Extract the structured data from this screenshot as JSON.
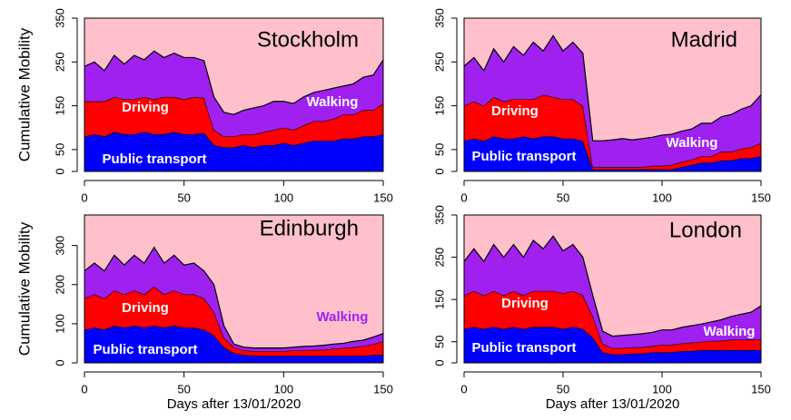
{
  "chart_data": [
    {
      "type": "area",
      "title": "Stockholm",
      "ylabel": "Cumulative Mobility",
      "x": [
        0,
        5,
        10,
        15,
        20,
        25,
        30,
        35,
        40,
        45,
        50,
        55,
        60,
        65,
        70,
        75,
        80,
        85,
        90,
        95,
        100,
        105,
        110,
        115,
        120,
        125,
        130,
        135,
        140,
        145,
        150
      ],
      "xlim": [
        0,
        150
      ],
      "ylim": [
        0,
        350
      ],
      "xticks": [
        0,
        50,
        100,
        150
      ],
      "yticks": [
        0,
        50,
        150,
        250,
        350
      ],
      "series": [
        {
          "name": "Public transport",
          "color": "#0000ff",
          "values": [
            80,
            85,
            80,
            90,
            85,
            85,
            90,
            85,
            85,
            90,
            85,
            85,
            88,
            60,
            55,
            55,
            60,
            55,
            60,
            60,
            65,
            60,
            65,
            70,
            70,
            70,
            75,
            75,
            80,
            80,
            85
          ]
        },
        {
          "name": "Driving",
          "color": "#ff0000",
          "values": [
            80,
            75,
            80,
            80,
            80,
            80,
            80,
            80,
            85,
            80,
            80,
            85,
            80,
            35,
            25,
            25,
            25,
            30,
            30,
            35,
            35,
            35,
            40,
            45,
            45,
            50,
            55,
            55,
            60,
            60,
            70
          ]
        },
        {
          "name": "Walking",
          "color": "#a020f0",
          "values": [
            80,
            90,
            70,
            95,
            80,
            100,
            85,
            110,
            90,
            100,
            95,
            90,
            85,
            75,
            55,
            50,
            55,
            60,
            60,
            65,
            60,
            60,
            65,
            65,
            70,
            70,
            65,
            70,
            75,
            80,
            100
          ]
        }
      ]
    },
    {
      "type": "area",
      "title": "Madrid",
      "x": [
        0,
        5,
        10,
        15,
        20,
        25,
        30,
        35,
        40,
        45,
        50,
        55,
        60,
        65,
        70,
        75,
        80,
        85,
        90,
        95,
        100,
        105,
        110,
        115,
        120,
        125,
        130,
        135,
        140,
        145,
        150
      ],
      "xlim": [
        0,
        150
      ],
      "ylim": [
        0,
        350
      ],
      "xticks": [
        0,
        50,
        100,
        150
      ],
      "yticks": [
        0,
        50,
        150,
        250,
        350
      ],
      "series": [
        {
          "name": "Public transport",
          "color": "#0000ff",
          "values": [
            70,
            75,
            70,
            80,
            75,
            75,
            80,
            75,
            80,
            80,
            75,
            75,
            70,
            5,
            5,
            5,
            5,
            5,
            5,
            5,
            5,
            5,
            10,
            15,
            20,
            20,
            25,
            25,
            30,
            30,
            35
          ]
        },
        {
          "name": "Driving",
          "color": "#ff0000",
          "values": [
            80,
            85,
            80,
            90,
            85,
            90,
            85,
            90,
            95,
            90,
            90,
            90,
            80,
            5,
            5,
            5,
            5,
            5,
            5,
            8,
            8,
            10,
            12,
            12,
            15,
            15,
            20,
            20,
            22,
            25,
            30
          ]
        },
        {
          "name": "Walking",
          "color": "#a020f0",
          "values": [
            90,
            100,
            80,
            110,
            90,
            120,
            100,
            130,
            100,
            140,
            110,
            130,
            120,
            60,
            60,
            62,
            65,
            62,
            65,
            65,
            70,
            70,
            70,
            70,
            75,
            75,
            80,
            85,
            90,
            95,
            110
          ]
        }
      ]
    },
    {
      "type": "area",
      "title": "Edinburgh",
      "ylabel": "Cumulative Mobility",
      "xlabel": "Days after 13/01/2020",
      "x": [
        0,
        5,
        10,
        15,
        20,
        25,
        30,
        35,
        40,
        45,
        50,
        55,
        60,
        65,
        70,
        75,
        80,
        85,
        90,
        95,
        100,
        105,
        110,
        115,
        120,
        125,
        130,
        135,
        140,
        145,
        150
      ],
      "xlim": [
        0,
        150
      ],
      "ylim": [
        0,
        378
      ],
      "xticks": [
        0,
        50,
        100,
        150
      ],
      "yticks": [
        0,
        100,
        200,
        300
      ],
      "series": [
        {
          "name": "Public transport",
          "color": "#0000ff",
          "values": [
            85,
            90,
            85,
            95,
            90,
            95,
            90,
            95,
            90,
            95,
            90,
            90,
            85,
            70,
            40,
            25,
            20,
            18,
            18,
            18,
            18,
            18,
            18,
            18,
            18,
            18,
            18,
            18,
            18,
            20,
            20
          ]
        },
        {
          "name": "Driving",
          "color": "#ff0000",
          "values": [
            80,
            85,
            80,
            90,
            85,
            90,
            85,
            100,
            85,
            90,
            85,
            85,
            80,
            60,
            25,
            15,
            12,
            12,
            12,
            12,
            12,
            14,
            14,
            15,
            15,
            18,
            20,
            22,
            25,
            28,
            35
          ]
        },
        {
          "name": "Walking",
          "color": "#a020f0",
          "label_color": "#a020f0",
          "values": [
            70,
            80,
            70,
            90,
            75,
            90,
            80,
            100,
            80,
            90,
            75,
            80,
            70,
            70,
            30,
            8,
            8,
            8,
            8,
            8,
            8,
            8,
            10,
            10,
            12,
            12,
            12,
            15,
            15,
            18,
            20
          ]
        }
      ]
    },
    {
      "type": "area",
      "title": "London",
      "xlabel": "Days after 13/01/2020",
      "x": [
        0,
        5,
        10,
        15,
        20,
        25,
        30,
        35,
        40,
        45,
        50,
        55,
        60,
        65,
        70,
        75,
        80,
        85,
        90,
        95,
        100,
        105,
        110,
        115,
        120,
        125,
        130,
        135,
        140,
        145,
        150
      ],
      "xlim": [
        0,
        150
      ],
      "ylim": [
        0,
        350
      ],
      "xticks": [
        0,
        50,
        100,
        150
      ],
      "yticks": [
        0,
        50,
        150,
        250,
        350
      ],
      "series": [
        {
          "name": "Public transport",
          "color": "#0000ff",
          "values": [
            80,
            85,
            80,
            85,
            80,
            85,
            80,
            85,
            85,
            85,
            80,
            85,
            80,
            60,
            25,
            20,
            20,
            22,
            22,
            25,
            25,
            25,
            28,
            28,
            30,
            30,
            30,
            30,
            30,
            30,
            30
          ]
        },
        {
          "name": "Driving",
          "color": "#ff0000",
          "values": [
            80,
            85,
            80,
            85,
            80,
            85,
            80,
            85,
            85,
            85,
            85,
            85,
            80,
            50,
            20,
            15,
            15,
            15,
            15,
            15,
            18,
            18,
            18,
            20,
            20,
            22,
            22,
            25,
            25,
            25,
            25
          ]
        },
        {
          "name": "Walking",
          "color": "#a020f0",
          "values": [
            80,
            100,
            80,
            110,
            90,
            110,
            90,
            120,
            100,
            130,
            100,
            110,
            90,
            50,
            30,
            28,
            30,
            30,
            32,
            32,
            35,
            35,
            38,
            40,
            42,
            45,
            50,
            55,
            60,
            65,
            80
          ]
        }
      ]
    }
  ]
}
